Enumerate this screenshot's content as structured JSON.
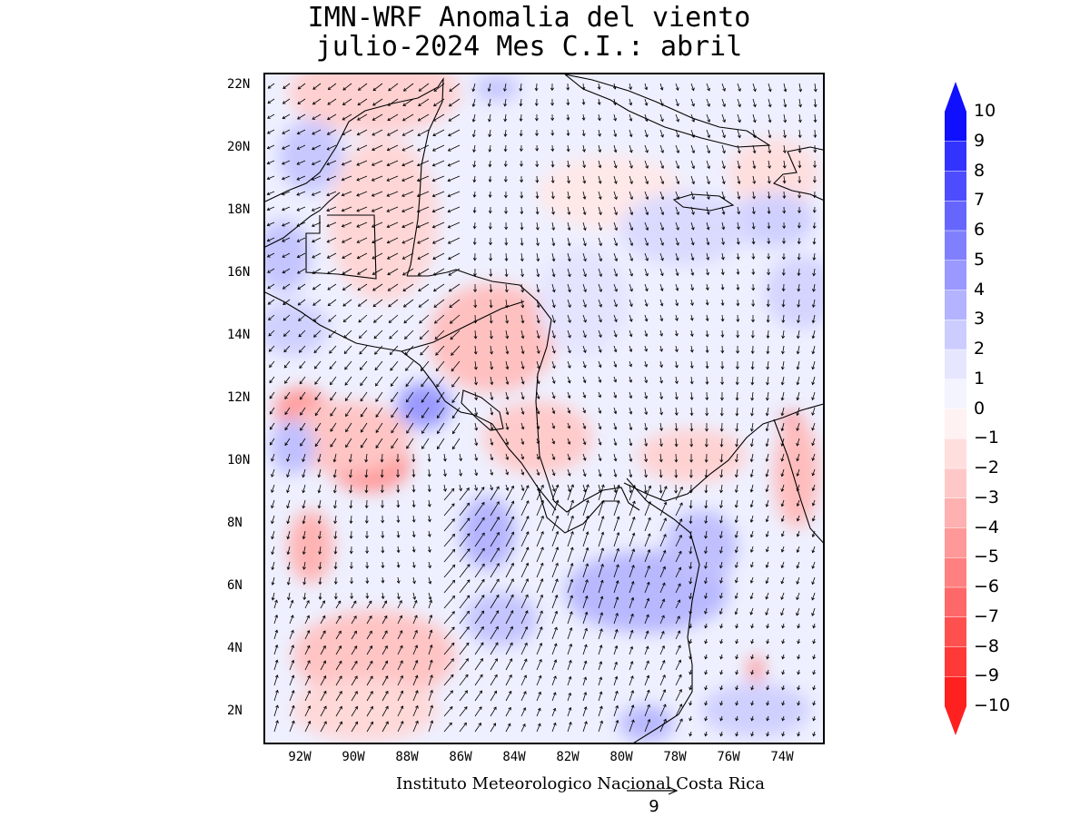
{
  "title": {
    "line1": "IMN-WRF Anomalia del viento",
    "line2": "julio-2024 Mes C.I.: abril"
  },
  "map": {
    "lat_ticks": [
      "22N",
      "20N",
      "18N",
      "16N",
      "14N",
      "12N",
      "10N",
      "8N",
      "6N",
      "4N",
      "2N"
    ],
    "lon_ticks": [
      "92W",
      "90W",
      "88W",
      "86W",
      "84W",
      "82W",
      "80W",
      "78W",
      "76W",
      "74W"
    ],
    "lon_range": [
      -93.3,
      -72.3
    ],
    "lat_range": [
      0.9,
      22.4
    ],
    "credit": "Instituto Meteorologico Nacional Costa Rica",
    "reference_vector": "9"
  },
  "colorbar": {
    "levels": [
      "10",
      "9",
      "8",
      "7",
      "6",
      "5",
      "4",
      "3",
      "2",
      "1",
      "0",
      "−1",
      "−2",
      "−3",
      "−4",
      "−5",
      "−6",
      "−7",
      "−8",
      "−9",
      "−10"
    ],
    "colors": [
      "#1010ff",
      "#3333ff",
      "#4d4dff",
      "#6666ff",
      "#8080ff",
      "#9999ff",
      "#b3b3ff",
      "#ccccff",
      "#e6e6ff",
      "#f4f4ff",
      "#fff2f2",
      "#ffdede",
      "#ffc8c8",
      "#ffb0b0",
      "#ff9898",
      "#ff8080",
      "#ff6868",
      "#ff5050",
      "#ff3838",
      "#ff2020"
    ]
  }
}
